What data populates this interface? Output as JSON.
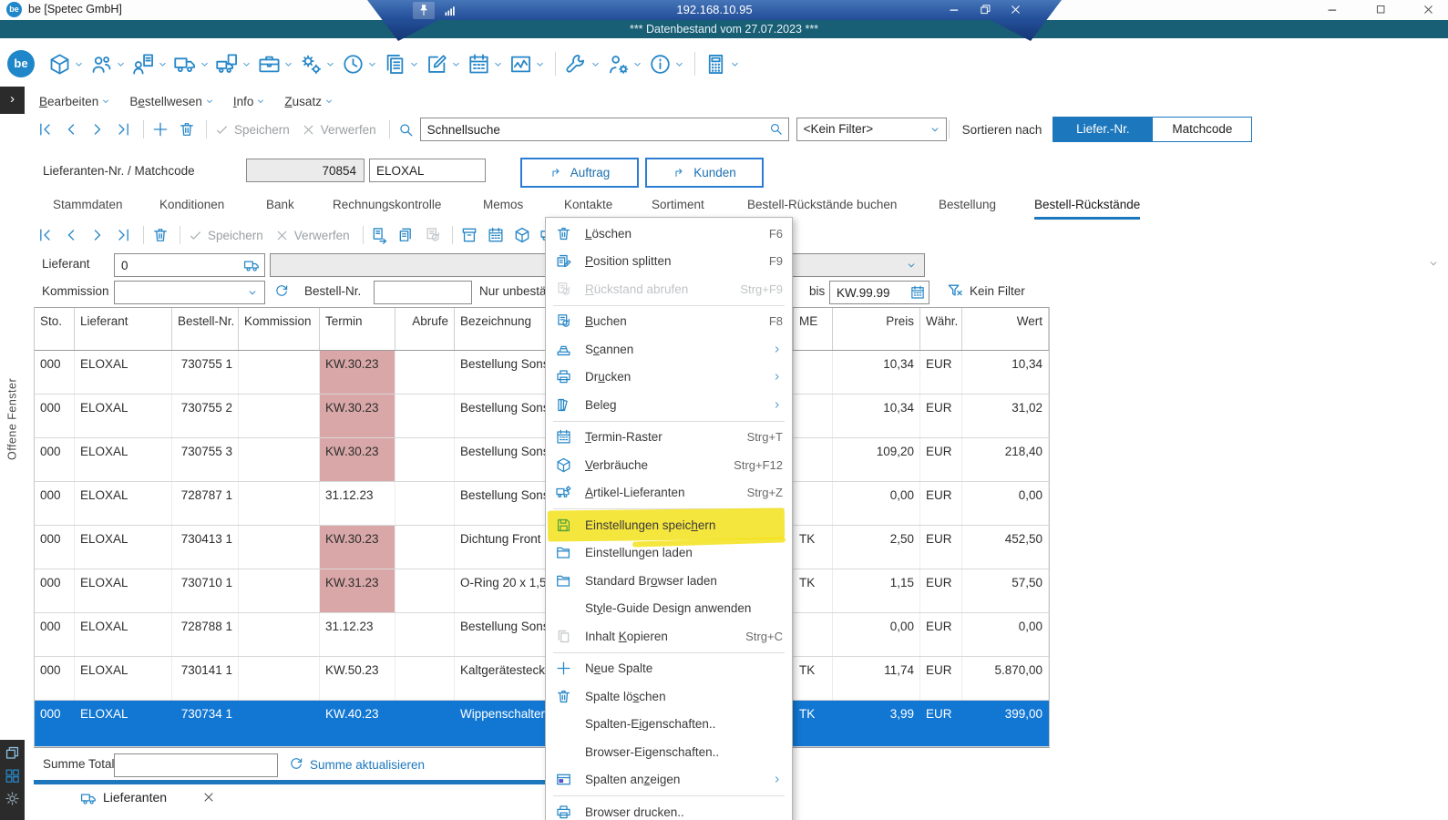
{
  "window": {
    "title": "be [Spetec GmbH]",
    "logo": "be"
  },
  "banner": {
    "ip": "192.168.10.95",
    "info": "*** Datenbestand vom 27.07.2023 ***"
  },
  "toolbar": {
    "items": [
      {
        "icon": "box"
      },
      {
        "icon": "users"
      },
      {
        "icon": "user-doc"
      },
      {
        "icon": "truck"
      },
      {
        "icon": "truck-doc"
      },
      {
        "icon": "briefcase"
      },
      {
        "icon": "gears"
      },
      {
        "icon": "clock"
      },
      {
        "icon": "copy-stack"
      },
      {
        "icon": "edit"
      },
      {
        "icon": "calendar"
      },
      {
        "icon": "chart"
      },
      {
        "divider": true
      },
      {
        "icon": "wrench"
      },
      {
        "icon": "user-gear"
      },
      {
        "icon": "info"
      },
      {
        "divider": true
      },
      {
        "icon": "calculator"
      }
    ]
  },
  "menubar": {
    "items": [
      {
        "label": "Bearbeiten",
        "accel": 0
      },
      {
        "label": "Bestellwesen",
        "accel": 1
      },
      {
        "label": "Info",
        "accel": 0
      },
      {
        "label": "Zusatz",
        "accel": 0
      }
    ]
  },
  "nav": {
    "speichern": "Speichern",
    "verwerfen": "Verwerfen"
  },
  "search": {
    "value": "Schnellsuche",
    "filter": "<Kein Filter>",
    "sort_label": "Sortieren nach",
    "sort_active": "Liefer.-Nr.",
    "sort_inactive": "Matchcode"
  },
  "supplier": {
    "label": "Lieferanten-Nr. / Matchcode",
    "nr": "70854",
    "matchcode": "ELOXAL",
    "auftrag": "Auftrag",
    "kunden": "Kunden"
  },
  "tabs": {
    "items": [
      "Stammdaten",
      "Konditionen",
      "Bank",
      "Rechnungskontrolle",
      "Memos",
      "Kontakte",
      "Sortiment",
      "Bestell-Rückstände buchen",
      "Bestellung",
      "Bestell-Rückstände"
    ],
    "active": 9
  },
  "toolbar2": {
    "icons": [
      "doc-arrow",
      "docs",
      "doc-gray",
      "divider",
      "archive",
      "calendar",
      "box",
      "truck-gear",
      "list"
    ]
  },
  "filters": {
    "lieferant_label": "Lieferant",
    "lieferant_value": "0",
    "kommission_label": "Kommission",
    "kommission_value": "",
    "bestellnr_label": "Bestell-Nr.",
    "bestellnr_value": "",
    "nur_label": "Nur unbestät",
    "bis_label": "bis",
    "bis_value": "KW.99.99",
    "kein_filter": "Kein Filter"
  },
  "table": {
    "columns": [
      "Sto.",
      "Lieferant",
      "Bestell-Nr.",
      "Kommission",
      "Termin",
      "Abrufe",
      "Bezeichnung",
      "ME",
      "Preis",
      "Währ.",
      "Wert"
    ],
    "rows": [
      {
        "sto": "000",
        "lieferant": "ELOXAL",
        "bestellnr": "730755 1",
        "kommission": "",
        "termin": "KW.30.23",
        "overdue": true,
        "abrufe": "",
        "bezeichnung": "Bestellung Sonst",
        "me": "",
        "preis": "10,34",
        "waehr": "EUR",
        "wert": "10,34",
        "selected": false
      },
      {
        "sto": "000",
        "lieferant": "ELOXAL",
        "bestellnr": "730755 2",
        "kommission": "",
        "termin": "KW.30.23",
        "overdue": true,
        "abrufe": "",
        "bezeichnung": "Bestellung Sonst",
        "me": "",
        "preis": "10,34",
        "waehr": "EUR",
        "wert": "31,02",
        "selected": false
      },
      {
        "sto": "000",
        "lieferant": "ELOXAL",
        "bestellnr": "730755 3",
        "kommission": "",
        "termin": "KW.30.23",
        "overdue": true,
        "abrufe": "",
        "bezeichnung": "Bestellung Sonst",
        "me": "",
        "preis": "109,20",
        "waehr": "EUR",
        "wert": "218,40",
        "selected": false
      },
      {
        "sto": "000",
        "lieferant": "ELOXAL",
        "bestellnr": "728787 1",
        "kommission": "",
        "termin": "31.12.23",
        "overdue": false,
        "abrufe": "",
        "bezeichnung": "Bestellung Sonst",
        "me": "",
        "preis": "0,00",
        "waehr": "EUR",
        "wert": "0,00",
        "selected": false
      },
      {
        "sto": "000",
        "lieferant": "ELOXAL",
        "bestellnr": "730413 1",
        "kommission": "",
        "termin": "KW.30.23",
        "overdue": true,
        "abrufe": "",
        "bezeichnung": "Dichtung Front II",
        "me": "TK",
        "preis": "2,50",
        "waehr": "EUR",
        "wert": "452,50",
        "selected": false
      },
      {
        "sto": "000",
        "lieferant": "ELOXAL",
        "bestellnr": "730710 1",
        "kommission": "",
        "termin": "KW.31.23",
        "overdue": true,
        "abrufe": "",
        "bezeichnung": "O-Ring  20 x 1,5",
        "me": "TK",
        "preis": "1,15",
        "waehr": "EUR",
        "wert": "57,50",
        "selected": false
      },
      {
        "sto": "000",
        "lieferant": "ELOXAL",
        "bestellnr": "728788 1",
        "kommission": "",
        "termin": "31.12.23",
        "overdue": false,
        "abrufe": "",
        "bezeichnung": "Bestellung Sonst",
        "me": "",
        "preis": "0,00",
        "waehr": "EUR",
        "wert": "0,00",
        "selected": false
      },
      {
        "sto": "000",
        "lieferant": "ELOXAL",
        "bestellnr": "730141 1",
        "kommission": "",
        "termin": "KW.50.23",
        "overdue": false,
        "abrufe": "",
        "bezeichnung": "Kaltgerätestecke",
        "me": "TK",
        "preis": "11,74",
        "waehr": "EUR",
        "wert": "5.870,00",
        "selected": false
      },
      {
        "sto": "000",
        "lieferant": "ELOXAL",
        "bestellnr": "730734 1",
        "kommission": "",
        "termin": "KW.40.23",
        "overdue": false,
        "abrufe": "",
        "bezeichnung": "Wippenschalter",
        "me": "TK",
        "preis": "3,99",
        "waehr": "EUR",
        "wert": "399,00",
        "selected": true
      }
    ]
  },
  "context_menu": {
    "items": [
      {
        "label": "Löschen",
        "accel": 0,
        "shortcut": "F6",
        "icon": "trash"
      },
      {
        "label": "Position splitten",
        "accel": 0,
        "shortcut": "F9",
        "icon": "split-doc"
      },
      {
        "label": "Rückstand abrufen",
        "accel": 0,
        "shortcut": "Strg+F9",
        "icon": "doc-refresh",
        "disabled": true,
        "sep": true
      },
      {
        "label": "Buchen",
        "accel": 0,
        "shortcut": "F8",
        "icon": "doc-refresh"
      },
      {
        "label": "Scannen",
        "accel": 1,
        "shortcut": "",
        "icon": "scanner",
        "submenu": true
      },
      {
        "label": "Drucken",
        "accel": 2,
        "shortcut": "",
        "icon": "printer",
        "submenu": true
      },
      {
        "label": "Beleg",
        "accel": -1,
        "shortcut": "",
        "icon": "books",
        "submenu": true,
        "sep": true
      },
      {
        "label": "Termin-Raster",
        "accel": 0,
        "shortcut": "Strg+T",
        "icon": "calendar"
      },
      {
        "label": "Verbräuche",
        "accel": 0,
        "shortcut": "Strg+F12",
        "icon": "box"
      },
      {
        "label": "Artikel-Lieferanten",
        "accel": 0,
        "shortcut": "Strg+Z",
        "icon": "truck-gear",
        "sep": true
      },
      {
        "label": "Einstellungen speichern",
        "accel": 19,
        "shortcut": "",
        "icon": "save",
        "highlight": true
      },
      {
        "label": "Einstellungen laden",
        "accel": -1,
        "shortcut": "",
        "icon": "folder"
      },
      {
        "label": "Standard Browser laden",
        "accel": 11,
        "shortcut": "",
        "icon": "folder"
      },
      {
        "label": "Style-Guide Design anwenden",
        "accel": 2,
        "shortcut": "",
        "icon": ""
      },
      {
        "label": "Inhalt Kopieren",
        "accel": 7,
        "shortcut": "Strg+C",
        "icon": "copy",
        "icon_disabled": true,
        "sep": true
      },
      {
        "label": "Neue Spalte",
        "accel": 1,
        "shortcut": "",
        "icon": "plus"
      },
      {
        "label": "Spalte löschen",
        "accel": 9,
        "shortcut": "",
        "icon": "trash"
      },
      {
        "label": "Spalten-Eigenschaften..",
        "accel": 9,
        "shortcut": "",
        "icon": ""
      },
      {
        "label": "Browser-Eigenschaften..",
        "accel": 10,
        "shortcut": "",
        "icon": ""
      },
      {
        "label": "Spalten anzeigen",
        "accel": 10,
        "shortcut": "",
        "icon": "columns",
        "submenu": true,
        "sep": true
      },
      {
        "label": "Browser drucken..",
        "accel": -1,
        "shortcut": "",
        "icon": "printer"
      }
    ]
  },
  "footer": {
    "summe_label": "Summe Total",
    "summe_value": "",
    "refresh_label": "Summe aktualisieren",
    "tab_label": "Lieferanten"
  },
  "sidebar": {
    "vertical_label": "Offene Fenster"
  },
  "colors": {
    "accent": "#1c77bd",
    "icon_blue": "#2787c8",
    "selected_row": "#1277d3",
    "overdue_cell": "#d9a7a7",
    "highlight_yellow": "#f3e00e",
    "save_green": "#56a33a",
    "banner_teal": "#185e74",
    "banner_blue": "#24509a"
  }
}
